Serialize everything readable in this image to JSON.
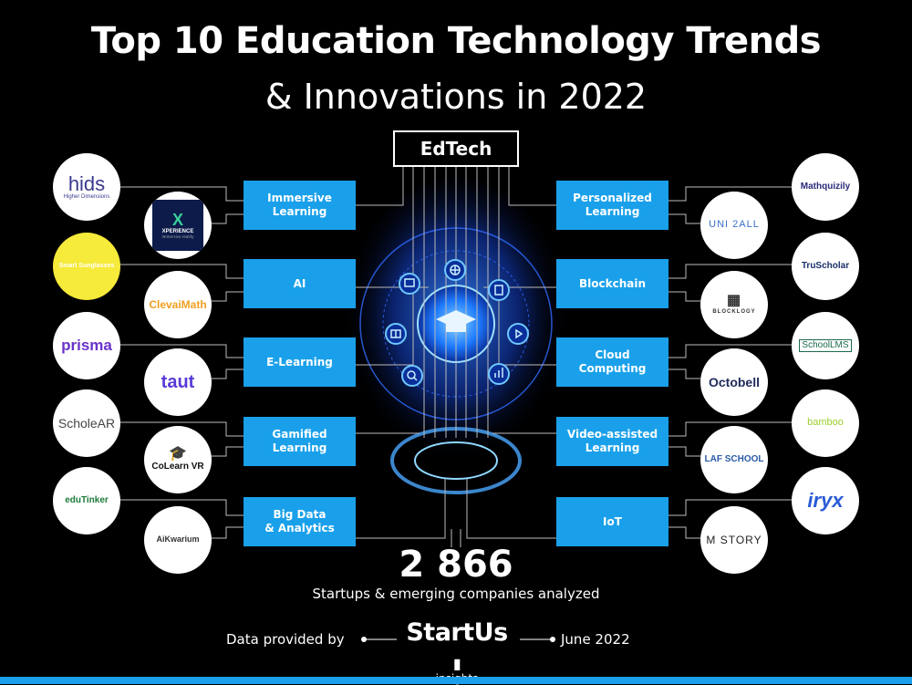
{
  "title": {
    "line1": "Top 10 Education Technology Trends",
    "line2": "& Innovations in 2022"
  },
  "hub": "EdTech",
  "trends_left": [
    "Immersive\nLearning",
    "AI",
    "E-Learning",
    "Gamified\nLearning",
    "Big Data\n& Analytics"
  ],
  "trends_right": [
    "Personalized\nLearning",
    "Blockchain",
    "Cloud\nComputing",
    "Video-assisted\nLearning",
    "IoT"
  ],
  "companies_left_outer": [
    "hids",
    "Smart Sunglasses",
    "prisma",
    "ScholeAR",
    "eduTinker"
  ],
  "companies_left_inner": [
    "XPERIENCE",
    "ClevaiMath",
    "taut",
    "CoLearn VR",
    "AiKwarium"
  ],
  "companies_right_outer": [
    "Mathquizily",
    "TruScholar",
    "SchoolLMS",
    "bamboo",
    "iryx"
  ],
  "companies_right_inner": [
    "UNI 2ALL",
    "BLOCKLOGY",
    "Octobell",
    "LAF SCHOOL",
    "M STORY"
  ],
  "logo_subtext": {
    "hids": "Higher Dimensions",
    "xperience": "Immersive reality"
  },
  "stat": {
    "value": "2 866",
    "label": "Startups & emerging companies analyzed"
  },
  "footer": {
    "left": "Data provided by",
    "brand": "StartUs",
    "brand_sub": "insights",
    "right": "June 2022"
  },
  "colors": {
    "accent": "#1aa0ea",
    "background": "#000000",
    "glow": "#1e6bff"
  },
  "icons": [
    "presentation-icon",
    "globe-icon",
    "notebook-icon",
    "book-icon",
    "graduation-cap-icon",
    "play-icon",
    "search-icon",
    "chart-icon"
  ]
}
